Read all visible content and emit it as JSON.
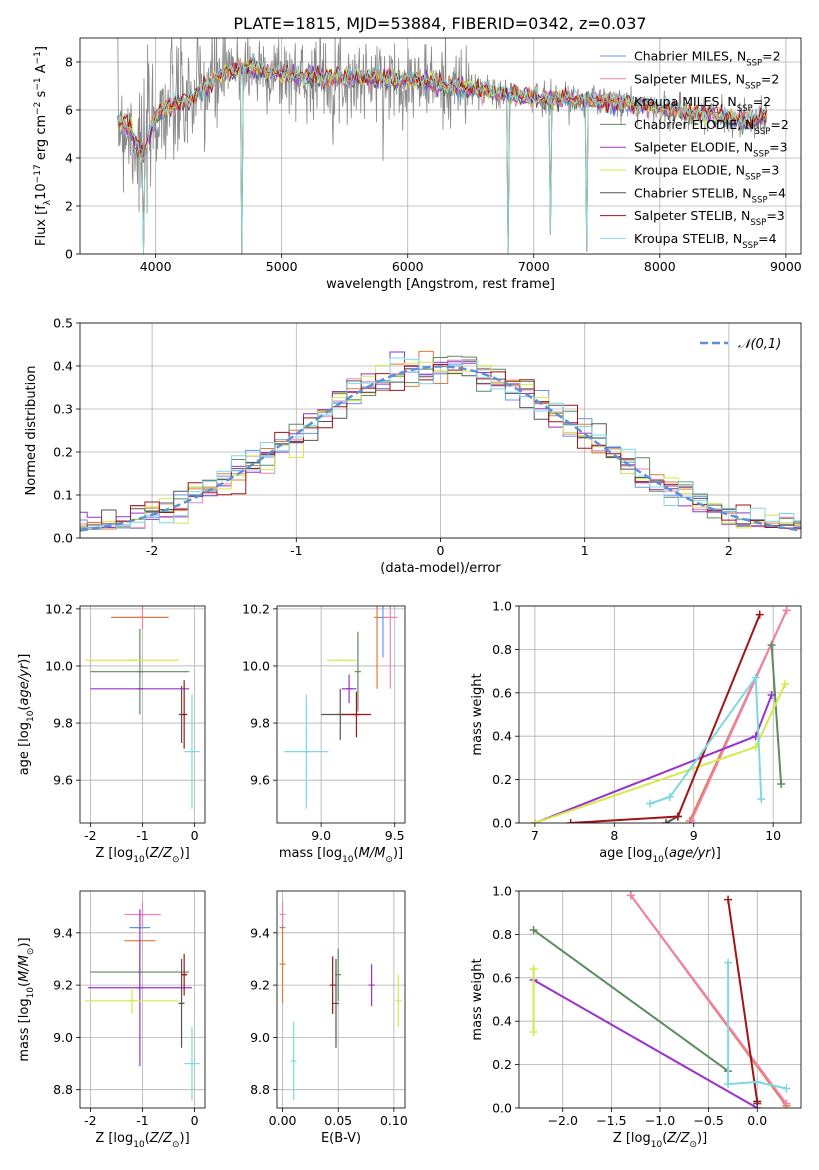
{
  "title": "PLATE=1815, MJD=53884, FIBERID=0342, z=0.037",
  "models": [
    {
      "name": "Chabrier MILES",
      "nssp": "2",
      "color": "#6495ed"
    },
    {
      "name": "Salpeter MILES",
      "nssp": "2",
      "color": "#ee82b4"
    },
    {
      "name": "Kroupa MILES",
      "nssp": "2",
      "color": "#e07b39"
    },
    {
      "name": "Chabrier ELODIE",
      "nssp": "2",
      "color": "#5e8c5e"
    },
    {
      "name": "Salpeter ELODIE",
      "nssp": "3",
      "color": "#9a32cd"
    },
    {
      "name": "Kroupa ELODIE",
      "nssp": "3",
      "color": "#d4ea4a"
    },
    {
      "name": "Chabrier STELIB",
      "nssp": "4",
      "color": "#555555"
    },
    {
      "name": "Salpeter STELIB",
      "nssp": "3",
      "color": "#a01515"
    },
    {
      "name": "Kroupa STELIB",
      "nssp": "4",
      "color": "#7fd8e0"
    }
  ],
  "chart_data": [
    {
      "id": "spectrum",
      "type": "line",
      "xlabel": "wavelength [Angstrom, rest frame]",
      "ylabel": "Flux [f_λ 10^-17 erg cm^-2 s^-1 A^-1]",
      "xlim": [
        3400,
        9120
      ],
      "ylim": [
        0,
        9
      ],
      "xticks": [
        4000,
        5000,
        6000,
        7000,
        8000,
        9000
      ],
      "yticks": [
        0,
        2,
        4,
        6,
        8
      ],
      "continuum": [
        [
          3700,
          5.6
        ],
        [
          3800,
          5.2
        ],
        [
          3900,
          4.0
        ],
        [
          4000,
          5.8
        ],
        [
          4100,
          6.1
        ],
        [
          4300,
          6.5
        ],
        [
          4500,
          7.4
        ],
        [
          4700,
          7.8
        ],
        [
          4900,
          7.6
        ],
        [
          5100,
          7.4
        ],
        [
          5300,
          7.4
        ],
        [
          5500,
          7.3
        ],
        [
          5800,
          7.3
        ],
        [
          6100,
          7.2
        ],
        [
          6300,
          7.0
        ],
        [
          6600,
          6.8
        ],
        [
          6800,
          6.6
        ],
        [
          7000,
          6.5
        ],
        [
          7200,
          6.5
        ],
        [
          7500,
          6.4
        ],
        [
          7800,
          6.2
        ],
        [
          8100,
          6.0
        ],
        [
          8400,
          5.8
        ],
        [
          8700,
          5.5
        ],
        [
          8850,
          5.8
        ]
      ],
      "dips": [
        [
          3900,
          0
        ],
        [
          4680,
          0
        ],
        [
          6800,
          0
        ],
        [
          7130,
          0.8
        ],
        [
          7420,
          0.1
        ]
      ]
    },
    {
      "id": "residuals",
      "type": "histogram",
      "xlabel": "(data-model)/error",
      "ylabel": "Normed distribution",
      "xlim": [
        -2.5,
        2.5
      ],
      "ylim": [
        0,
        0.5
      ],
      "xticks": [
        -2,
        -1,
        0,
        1,
        2
      ],
      "yticks": [
        0.0,
        0.1,
        0.2,
        0.3,
        0.4,
        0.5
      ],
      "reference": {
        "label": "𝒩(0,1)",
        "mu": 0,
        "sigma": 1,
        "color": "#5b8fd6"
      },
      "bin_width": 0.1
    },
    {
      "id": "age_vs_Z",
      "type": "scatter",
      "xlabel": "Z [log10(Z/Z⊙)]",
      "ylabel": "age [log10(age/yr)]",
      "xlim": [
        -2.2,
        0.2
      ],
      "ylim": [
        9.45,
        10.21
      ],
      "xticks": [
        -2,
        -1,
        0
      ],
      "yticks": [
        9.6,
        9.8,
        10.0,
        10.2
      ],
      "points": [
        {
          "model": 0,
          "x": -1.05,
          "y": 10.17,
          "xerr": 0.55,
          "yerr": 0.0
        },
        {
          "model": 1,
          "x": -1.0,
          "y": 10.17,
          "xerr": 0.5,
          "yerr": 0.04
        },
        {
          "model": 2,
          "x": -1.05,
          "y": 10.17,
          "xerr": 0.55,
          "yerr": 0.0
        },
        {
          "model": 3,
          "x": -1.05,
          "y": 9.98,
          "xerr": 0.95,
          "yerr": 0.15
        },
        {
          "model": 4,
          "x": -1.05,
          "y": 9.92,
          "xerr": 0.95,
          "yerr": 0.0
        },
        {
          "model": 5,
          "x": -1.2,
          "y": 10.02,
          "xerr": 0.9,
          "yerr": 0.0
        },
        {
          "model": 6,
          "x": -0.25,
          "y": 9.83,
          "xerr": 0.0,
          "yerr": 0.1
        },
        {
          "model": 7,
          "x": -0.2,
          "y": 9.83,
          "xerr": 0.05,
          "yerr": 0.12
        },
        {
          "model": 8,
          "x": -0.05,
          "y": 9.7,
          "xerr": 0.15,
          "yerr": 0.2
        }
      ]
    },
    {
      "id": "age_vs_mass",
      "type": "scatter",
      "xlabel": "mass [log10(M/M⊙)]",
      "ylabel": "",
      "xlim": [
        8.7,
        9.57
      ],
      "ylim": [
        9.45,
        10.21
      ],
      "xticks": [
        9.0,
        9.5
      ],
      "yticks": [
        9.6,
        9.8,
        10.0,
        10.2
      ],
      "points": [
        {
          "model": 0,
          "x": 9.42,
          "y": 10.17,
          "xerr": 0.0,
          "yerr": 0.14
        },
        {
          "model": 1,
          "x": 9.47,
          "y": 10.17,
          "xerr": 0.05,
          "yerr": 0.25
        },
        {
          "model": 2,
          "x": 9.38,
          "y": 10.17,
          "xerr": 0.0,
          "yerr": 0.25
        },
        {
          "model": 3,
          "x": 9.25,
          "y": 9.98,
          "xerr": 0.0,
          "yerr": 0.14
        },
        {
          "model": 4,
          "x": 9.19,
          "y": 9.92,
          "xerr": 0.05,
          "yerr": 0.05
        },
        {
          "model": 5,
          "x": 9.14,
          "y": 10.02,
          "xerr": 0.1,
          "yerr": 0.0
        },
        {
          "model": 6,
          "x": 9.13,
          "y": 9.83,
          "xerr": 0.13,
          "yerr": 0.09
        },
        {
          "model": 7,
          "x": 9.24,
          "y": 9.83,
          "xerr": 0.1,
          "yerr": 0.08
        },
        {
          "model": 8,
          "x": 8.9,
          "y": 9.7,
          "xerr": 0.15,
          "yerr": 0.2
        }
      ]
    },
    {
      "id": "weight_vs_age",
      "type": "line",
      "xlabel": "age [log10(age/yr)]",
      "ylabel": "mass weight",
      "xlim": [
        6.8,
        10.35
      ],
      "ylim": [
        0,
        1.0
      ],
      "xticks": [
        7,
        8,
        9,
        10
      ],
      "yticks": [
        0.0,
        0.2,
        0.4,
        0.6,
        0.8,
        1.0
      ],
      "series": [
        {
          "model": 2,
          "points": [
            [
              8.95,
              0.01
            ],
            [
              10.17,
              0.98
            ]
          ]
        },
        {
          "model": 1,
          "points": [
            [
              8.97,
              0.01
            ],
            [
              10.17,
              0.98
            ]
          ]
        },
        {
          "model": 3,
          "points": [
            [
              9.98,
              0.82
            ],
            [
              10.1,
              0.18
            ]
          ]
        },
        {
          "model": 4,
          "points": [
            [
              7.0,
              0.0
            ],
            [
              9.78,
              0.4
            ],
            [
              9.98,
              0.59
            ]
          ]
        },
        {
          "model": 5,
          "points": [
            [
              7.0,
              0.0
            ],
            [
              9.78,
              0.35
            ],
            [
              10.15,
              0.64
            ]
          ]
        },
        {
          "model": 6,
          "points": [
            [
              8.65,
              0.0
            ],
            [
              8.8,
              0.03
            ]
          ]
        },
        {
          "model": 7,
          "points": [
            [
              7.45,
              0.0
            ],
            [
              8.8,
              0.03
            ],
            [
              9.83,
              0.96
            ]
          ]
        },
        {
          "model": 8,
          "points": [
            [
              8.45,
              0.09
            ],
            [
              8.7,
              0.12
            ],
            [
              9.78,
              0.67
            ],
            [
              9.85,
              0.11
            ]
          ]
        }
      ]
    },
    {
      "id": "mass_vs_Z",
      "type": "scatter",
      "xlabel": "Z [log10(Z/Z⊙)]",
      "ylabel": "mass [log10(M/M⊙)]",
      "xlim": [
        -2.2,
        0.2
      ],
      "ylim": [
        8.73,
        9.56
      ],
      "xticks": [
        -2,
        -1,
        0
      ],
      "yticks": [
        8.8,
        9.0,
        9.2,
        9.4
      ],
      "points": [
        {
          "model": 0,
          "x": -1.05,
          "y": 9.42,
          "xerr": 0.2,
          "yerr": 0.0
        },
        {
          "model": 1,
          "x": -1.0,
          "y": 9.47,
          "xerr": 0.35,
          "yerr": 0.05
        },
        {
          "model": 2,
          "x": -1.05,
          "y": 9.37,
          "xerr": 0.3,
          "yerr": 0.0
        },
        {
          "model": 3,
          "x": -1.05,
          "y": 9.25,
          "xerr": 0.95,
          "yerr": 0.1
        },
        {
          "model": 4,
          "x": -1.05,
          "y": 9.19,
          "xerr": 1.0,
          "yerr": 0.3
        },
        {
          "model": 5,
          "x": -1.2,
          "y": 9.14,
          "xerr": 0.9,
          "yerr": 0.05
        },
        {
          "model": 6,
          "x": -0.25,
          "y": 9.13,
          "xerr": 0.05,
          "yerr": 0.17
        },
        {
          "model": 7,
          "x": -0.2,
          "y": 9.24,
          "xerr": 0.05,
          "yerr": 0.08
        },
        {
          "model": 8,
          "x": -0.05,
          "y": 8.9,
          "xerr": 0.15,
          "yerr": 0.14
        }
      ]
    },
    {
      "id": "mass_vs_ebv",
      "type": "scatter",
      "xlabel": "E(B-V)",
      "ylabel": "",
      "xlim": [
        -0.005,
        0.11
      ],
      "ylim": [
        8.73,
        9.56
      ],
      "xticks": [
        0.0,
        0.05,
        0.1
      ],
      "yticks": [
        8.8,
        9.0,
        9.2,
        9.4
      ],
      "points": [
        {
          "model": 0,
          "x": 0.0,
          "y": 9.42,
          "xerr": 0.0,
          "yerr": 0.0
        },
        {
          "model": 1,
          "x": 0.0,
          "y": 9.47,
          "xerr": 0.0,
          "yerr": 0.05
        },
        {
          "model": 2,
          "x": 0.0,
          "y": 9.28,
          "xerr": 0.0,
          "yerr": 0.15
        },
        {
          "model": 3,
          "x": 0.05,
          "y": 9.24,
          "xerr": 0.0,
          "yerr": 0.1
        },
        {
          "model": 4,
          "x": 0.08,
          "y": 9.2,
          "xerr": 0.0,
          "yerr": 0.08
        },
        {
          "model": 5,
          "x": 0.104,
          "y": 9.14,
          "xerr": 0.0,
          "yerr": 0.1
        },
        {
          "model": 6,
          "x": 0.048,
          "y": 9.13,
          "xerr": 0.0,
          "yerr": 0.17
        },
        {
          "model": 7,
          "x": 0.045,
          "y": 9.2,
          "xerr": 0.0,
          "yerr": 0.11
        },
        {
          "model": 8,
          "x": 0.01,
          "y": 8.91,
          "xerr": 0.0,
          "yerr": 0.15
        }
      ]
    },
    {
      "id": "weight_vs_Z",
      "type": "line",
      "xlabel": "Z [log10(Z/Z⊙)]",
      "ylabel": "mass weight",
      "xlim": [
        -2.45,
        0.45
      ],
      "ylim": [
        0,
        1.0
      ],
      "xticks": [
        -2.0,
        -1.5,
        -1.0,
        -0.5,
        0.0
      ],
      "yticks": [
        0.0,
        0.2,
        0.4,
        0.6,
        0.8,
        1.0
      ],
      "series": [
        {
          "model": 2,
          "points": [
            [
              -1.3,
              0.98
            ],
            [
              0.3,
              0.01
            ]
          ]
        },
        {
          "model": 1,
          "points": [
            [
              -1.3,
              0.98
            ],
            [
              0.3,
              0.02
            ]
          ]
        },
        {
          "model": 3,
          "points": [
            [
              -2.3,
              0.82
            ],
            [
              -0.3,
              0.17
            ]
          ]
        },
        {
          "model": 4,
          "points": [
            [
              -2.3,
              0.59
            ],
            [
              0.0,
              0.0
            ]
          ]
        },
        {
          "model": 5,
          "points": [
            [
              -2.3,
              0.64
            ],
            [
              -2.3,
              0.35
            ]
          ]
        },
        {
          "model": 6,
          "points": [
            [
              0.0,
              0.02
            ],
            [
              0.0,
              0.03
            ]
          ]
        },
        {
          "model": 7,
          "points": [
            [
              -0.3,
              0.96
            ],
            [
              0.0,
              0.03
            ]
          ]
        },
        {
          "model": 8,
          "points": [
            [
              -0.3,
              0.67
            ],
            [
              -0.3,
              0.11
            ],
            [
              0.0,
              0.12
            ],
            [
              0.3,
              0.09
            ]
          ]
        }
      ]
    }
  ]
}
